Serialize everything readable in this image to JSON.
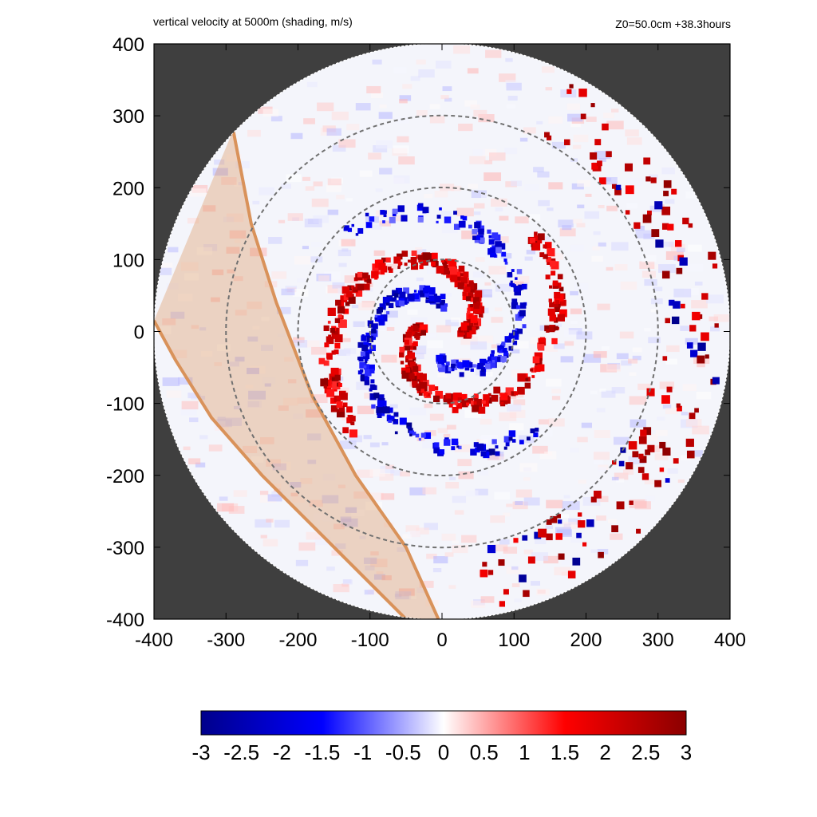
{
  "header": {
    "left": "vertical velocity at 5000m (shading, m/s)",
    "right": "Z0=50.0cm  +38.3hours"
  },
  "colors": {
    "background_mask": "#3f3f3f",
    "neutral": "#ffffff",
    "negative_max": "#00008b",
    "negative_mid": "#0000ff",
    "positive_mid": "#ff0000",
    "positive_max": "#8b0000",
    "land_band": "#d9925a",
    "range_rings": "#707070"
  },
  "chart_data": {
    "type": "heatmap",
    "title": "vertical velocity at 5000m (shading, m/s)",
    "annotation": "Z0=50.0cm  +38.3hours",
    "x_ticks": [
      "-400",
      "-300",
      "-200",
      "-100",
      "0",
      "100",
      "200",
      "300",
      "400"
    ],
    "y_ticks": [
      "400",
      "300",
      "200",
      "100",
      "0",
      "-100",
      "-200",
      "-300",
      "-400"
    ],
    "xlim": [
      -400,
      400
    ],
    "ylim": [
      -400,
      400
    ],
    "domain_radius": 400,
    "range_rings": [
      100,
      200,
      300
    ],
    "grid": false,
    "colorbar": {
      "min": -3,
      "max": 3,
      "placement": "bottom",
      "ticks": [
        "-3",
        "-2.5",
        "-2",
        "-1.5",
        "-1",
        "-0.5",
        "0",
        "0.5",
        "1",
        "1.5",
        "2",
        "2.5",
        "3"
      ]
    },
    "land_band": {
      "inner_edge": [
        [
          -290,
          280
        ],
        [
          -265,
          150
        ],
        [
          -230,
          40
        ],
        [
          -180,
          -90
        ],
        [
          -120,
          -200
        ],
        [
          -50,
          -300
        ],
        [
          -5,
          -400
        ]
      ],
      "outer_edge": [
        [
          -400,
          15
        ],
        [
          -370,
          -40
        ],
        [
          -320,
          -120
        ],
        [
          -250,
          -200
        ],
        [
          -170,
          -280
        ],
        [
          -100,
          -350
        ],
        [
          -50,
          -400
        ]
      ]
    }
  }
}
